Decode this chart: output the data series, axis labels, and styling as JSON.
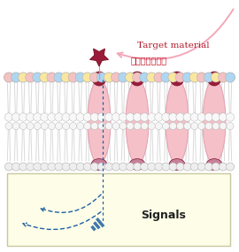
{
  "bg_color": "#ffffff",
  "box_facecolor": "#fdfde8",
  "box_edgecolor": "#c8c8a0",
  "protein_body_color": "#f5c0c8",
  "protein_body_edge": "#e0a0b0",
  "protein_cap_color": "#9b1c3a",
  "protein_cap_edge": "#7a1428",
  "star_color": "#9b1c3a",
  "star_edge": "#7a1428",
  "arrow_curve_color": "#f4a7b9",
  "signal_color": "#2060a0",
  "text_target_en": "Target material",
  "text_target_jp": "ターゲット物質",
  "text_signals": "Signals",
  "head_colors": [
    "#f4c2c2",
    "#aed6f1",
    "#f9e79f"
  ],
  "head_color_bottom": "#f0f0f0",
  "tail_color": "#d0d0d0",
  "lipid_edge": "#b0b0b0"
}
